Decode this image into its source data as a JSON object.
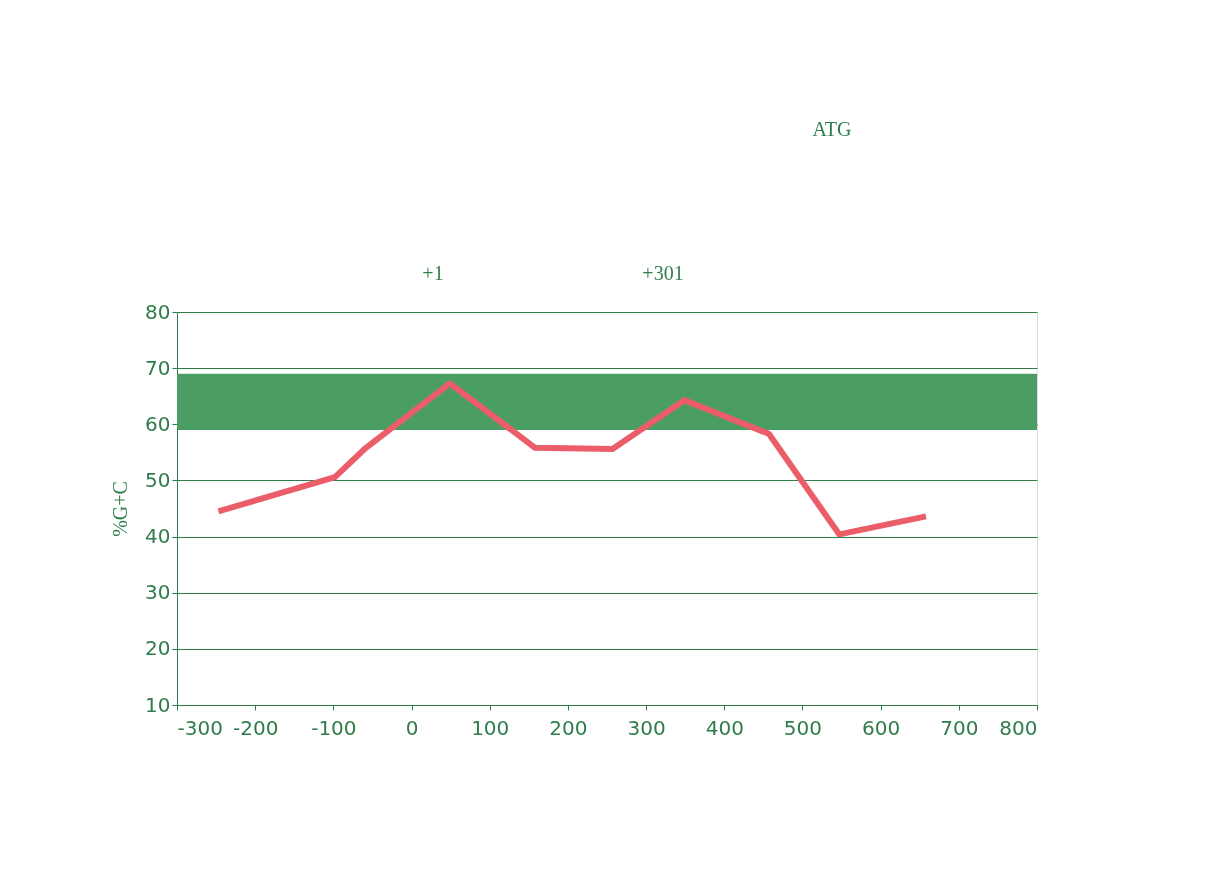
{
  "chart_data": {
    "type": "line",
    "ylabel": "%G+C",
    "annotations": [
      "+1",
      "+301",
      "ATG"
    ],
    "x": [
      -247,
      -98,
      -60,
      49,
      158,
      257,
      349,
      457,
      547,
      658
    ],
    "series": [
      {
        "color": "#ec5d6a",
        "values": [
          44.5,
          50.6,
          55.6,
          67.3,
          55.8,
          55.6,
          64.3,
          58.3,
          40.4,
          43.6
        ]
      }
    ],
    "bands": [
      {
        "axis": "y",
        "from": 59,
        "to": 69,
        "color": "#4a9e64"
      }
    ],
    "xlim": [
      -300,
      800
    ],
    "xticks": [
      -300,
      -200,
      -100,
      0,
      100,
      200,
      300,
      400,
      500,
      600,
      700,
      800
    ],
    "ylim": [
      10,
      80
    ],
    "yticks": [
      10,
      20,
      30,
      40,
      50,
      60,
      70,
      80
    ],
    "grid": "y",
    "legend": false
  }
}
